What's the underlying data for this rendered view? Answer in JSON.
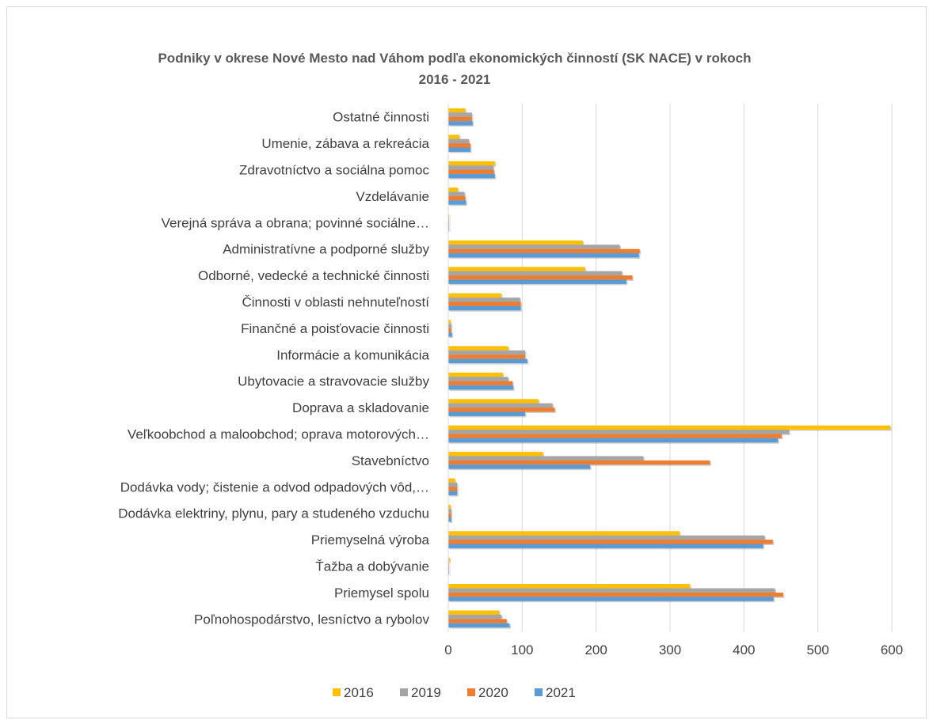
{
  "chart_data": {
    "type": "bar",
    "orientation": "horizontal",
    "title": "Podniky v okrese Nové Mesto nad Váhom podľa ekonomických činností (SK NACE) v rokoch 2016 - 2021",
    "title_lines": [
      "Podniky v okrese Nové Mesto nad Váhom podľa ekonomických činností (SK NACE) v rokoch",
      "2016 - 2021"
    ],
    "categories": [
      "Poľnohospodárstvo, lesníctvo a rybolov",
      "Priemysel spolu",
      "Ťažba a dobývanie",
      "Priemyselná výroba",
      "Dodávka elektriny, plynu, pary a studeného vzduchu",
      "Dodávka vody; čistenie a odvod odpadových vôd,…",
      "Stavebníctvo",
      "Veľkoobchod a maloobchod; oprava motorových…",
      "Doprava a skladovanie",
      "Ubytovacie a stravovacie služby",
      "Informácie a komunikácia",
      "Finančné a poisťovacie činnosti",
      "Činnosti v oblasti nehnuteľností",
      "Odborné, vedecké a technické činnosti",
      "Administratívne a podporné služby",
      "Verejná správa a obrana; povinné sociálne…",
      "Vzdelávanie",
      "Zdravotníctvo a sociálna pomoc",
      "Umenie, zábava a rekreácia",
      "Ostatné činnosti"
    ],
    "series": [
      {
        "name": "2016",
        "color": "#FFC000",
        "values": [
          69,
          327,
          2,
          313,
          3,
          9,
          128,
          598,
          122,
          74,
          81,
          3,
          72,
          185,
          182,
          1,
          13,
          63,
          15,
          23
        ]
      },
      {
        "name": "2019",
        "color": "#A5A5A5",
        "values": [
          72,
          442,
          1,
          428,
          4,
          12,
          264,
          461,
          141,
          81,
          104,
          4,
          97,
          235,
          232,
          1,
          22,
          61,
          28,
          32
        ]
      },
      {
        "name": "2020",
        "color": "#ED7D31",
        "values": [
          79,
          453,
          1,
          439,
          4,
          12,
          354,
          451,
          144,
          87,
          104,
          4,
          98,
          249,
          259,
          1,
          23,
          62,
          30,
          32
        ]
      },
      {
        "name": "2021",
        "color": "#5B9BD5",
        "values": [
          83,
          440,
          1,
          426,
          4,
          12,
          192,
          446,
          104,
          88,
          107,
          5,
          98,
          241,
          258,
          1,
          24,
          63,
          30,
          33
        ]
      }
    ],
    "xlim": [
      0,
      600
    ],
    "xticks": [
      0,
      100,
      200,
      300,
      400,
      500,
      600
    ],
    "xtick_labels": [
      "0",
      "100",
      "200",
      "300",
      "400",
      "500",
      "600"
    ],
    "grid": "vertical",
    "legend_position": "bottom"
  }
}
